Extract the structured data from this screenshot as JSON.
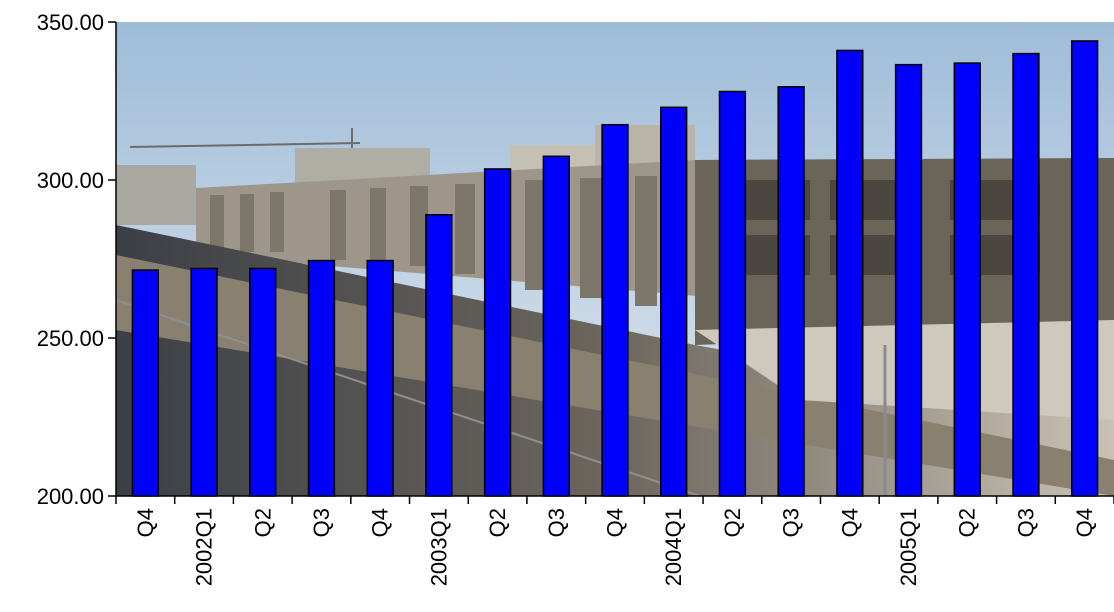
{
  "chart_data": {
    "type": "bar",
    "categories": [
      "Q4",
      "2002Q1",
      "Q2",
      "Q3",
      "Q4",
      "2003Q1",
      "Q2",
      "Q3",
      "Q4",
      "2004Q1",
      "Q2",
      "Q3",
      "Q4",
      "2005Q1",
      "Q2",
      "Q3",
      "Q4"
    ],
    "values": [
      271.5,
      272.0,
      272.0,
      274.5,
      274.5,
      289.0,
      303.5,
      307.5,
      317.5,
      323.0,
      328.0,
      329.5,
      341.0,
      336.5,
      337.0,
      340.0,
      344.0
    ],
    "title": "",
    "xlabel": "",
    "ylabel": "",
    "ylim": [
      200,
      350
    ],
    "yticks": [
      200,
      250,
      300,
      350
    ],
    "ytick_labels": [
      "200.00",
      "250.00",
      "300.00",
      "350.00"
    ],
    "grid": false,
    "legend": "none",
    "background": "photograph of a multi-storey building beside a highway",
    "colors": {
      "bar_fill": "#0000ff",
      "bar_stroke": "#000000",
      "axis": "#000000"
    }
  }
}
